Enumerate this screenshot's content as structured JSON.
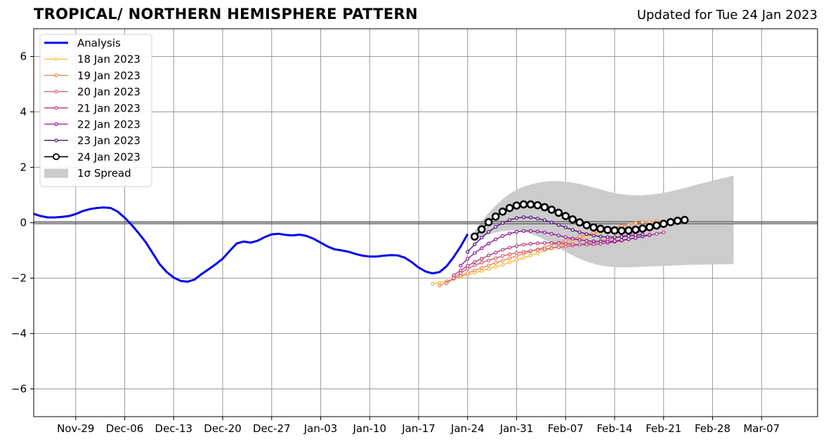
{
  "title": "TROPICAL/ NORTHERN HEMISPHERE PATTERN",
  "subtitle": "Updated for Tue 24 Jan 2023",
  "chart_data": {
    "type": "line",
    "title": "TROPICAL/ NORTHERN HEMISPHERE PATTERN",
    "subtitle": "Updated for Tue 24 Jan 2023",
    "xlabel": "",
    "ylabel": "",
    "x_axis": {
      "type": "date",
      "start": "2022-11-23",
      "end": "2023-03-15"
    },
    "ylim": [
      -7,
      7
    ],
    "x_ticks": [
      {
        "date": "2022-11-29",
        "label": "Nov-29"
      },
      {
        "date": "2022-12-06",
        "label": "Dec-06"
      },
      {
        "date": "2022-12-13",
        "label": "Dec-13"
      },
      {
        "date": "2022-12-20",
        "label": "Dec-20"
      },
      {
        "date": "2022-12-27",
        "label": "Dec-27"
      },
      {
        "date": "2023-01-03",
        "label": "Jan-03"
      },
      {
        "date": "2023-01-10",
        "label": "Jan-10"
      },
      {
        "date": "2023-01-17",
        "label": "Jan-17"
      },
      {
        "date": "2023-01-24",
        "label": "Jan-24"
      },
      {
        "date": "2023-01-31",
        "label": "Jan-31"
      },
      {
        "date": "2023-02-07",
        "label": "Feb-07"
      },
      {
        "date": "2023-02-14",
        "label": "Feb-14"
      },
      {
        "date": "2023-02-21",
        "label": "Feb-21"
      },
      {
        "date": "2023-02-28",
        "label": "Feb-28"
      },
      {
        "date": "2023-03-07",
        "label": "Mar-07"
      }
    ],
    "y_ticks": [
      {
        "value": -6,
        "label": "−6"
      },
      {
        "value": -4,
        "label": "−4"
      },
      {
        "value": -2,
        "label": "−2"
      },
      {
        "value": 0,
        "label": "0"
      },
      {
        "value": 2,
        "label": "2"
      },
      {
        "value": 4,
        "label": "4"
      },
      {
        "value": 6,
        "label": "6"
      }
    ],
    "grid": true,
    "legend_position": "top-left",
    "zero_line": true,
    "analysis": {
      "name": "Analysis",
      "color": "#0000ee",
      "points": [
        [
          "2022-11-23",
          0.32
        ],
        [
          "2022-11-24",
          0.24
        ],
        [
          "2022-11-25",
          0.19
        ],
        [
          "2022-11-26",
          0.19
        ],
        [
          "2022-11-27",
          0.21
        ],
        [
          "2022-11-28",
          0.24
        ],
        [
          "2022-11-29",
          0.31
        ],
        [
          "2022-11-30",
          0.42
        ],
        [
          "2022-12-01",
          0.49
        ],
        [
          "2022-12-02",
          0.53
        ],
        [
          "2022-12-03",
          0.55
        ],
        [
          "2022-12-04",
          0.53
        ],
        [
          "2022-12-05",
          0.4
        ],
        [
          "2022-12-06",
          0.18
        ],
        [
          "2022-12-07",
          -0.08
        ],
        [
          "2022-12-08",
          -0.38
        ],
        [
          "2022-12-09",
          -0.7
        ],
        [
          "2022-12-10",
          -1.1
        ],
        [
          "2022-12-11",
          -1.5
        ],
        [
          "2022-12-12",
          -1.78
        ],
        [
          "2022-12-13",
          -1.98
        ],
        [
          "2022-12-14",
          -2.1
        ],
        [
          "2022-12-15",
          -2.13
        ],
        [
          "2022-12-16",
          -2.05
        ],
        [
          "2022-12-17",
          -1.85
        ],
        [
          "2022-12-18",
          -1.68
        ],
        [
          "2022-12-19",
          -1.5
        ],
        [
          "2022-12-20",
          -1.3
        ],
        [
          "2022-12-21",
          -1.02
        ],
        [
          "2022-12-22",
          -0.75
        ],
        [
          "2022-12-23",
          -0.68
        ],
        [
          "2022-12-24",
          -0.72
        ],
        [
          "2022-12-25",
          -0.65
        ],
        [
          "2022-12-26",
          -0.52
        ],
        [
          "2022-12-27",
          -0.42
        ],
        [
          "2022-12-28",
          -0.4
        ],
        [
          "2022-12-29",
          -0.44
        ],
        [
          "2022-12-30",
          -0.46
        ],
        [
          "2022-12-31",
          -0.43
        ],
        [
          "2023-01-01",
          -0.48
        ],
        [
          "2023-01-02",
          -0.58
        ],
        [
          "2023-01-03",
          -0.72
        ],
        [
          "2023-01-04",
          -0.86
        ],
        [
          "2023-01-05",
          -0.96
        ],
        [
          "2023-01-06",
          -1.0
        ],
        [
          "2023-01-07",
          -1.05
        ],
        [
          "2023-01-08",
          -1.13
        ],
        [
          "2023-01-09",
          -1.19
        ],
        [
          "2023-01-10",
          -1.22
        ],
        [
          "2023-01-11",
          -1.22
        ],
        [
          "2023-01-12",
          -1.19
        ],
        [
          "2023-01-13",
          -1.17
        ],
        [
          "2023-01-14",
          -1.18
        ],
        [
          "2023-01-15",
          -1.26
        ],
        [
          "2023-01-16",
          -1.42
        ],
        [
          "2023-01-17",
          -1.62
        ],
        [
          "2023-01-18",
          -1.76
        ],
        [
          "2023-01-19",
          -1.83
        ],
        [
          "2023-01-20",
          -1.78
        ],
        [
          "2023-01-21",
          -1.57
        ],
        [
          "2023-01-22",
          -1.24
        ],
        [
          "2023-01-23",
          -0.86
        ],
        [
          "2023-01-24",
          -0.41
        ]
      ]
    },
    "forecasts": [
      {
        "name": "18 Jan 2023",
        "color": "#f8b93a",
        "start": "2023-01-19",
        "values": [
          -2.2,
          -2.17,
          -2.1,
          -2.03,
          -1.95,
          -1.88,
          -1.81,
          -1.74,
          -1.67,
          -1.59,
          -1.52,
          -1.43,
          -1.35,
          -1.27,
          -1.18,
          -1.1,
          -1.01,
          -0.92,
          -0.83,
          -0.75,
          -0.66,
          -0.58,
          -0.5,
          -0.42,
          -0.34,
          -0.26,
          -0.19,
          -0.12,
          -0.06,
          -0.01,
          0.02,
          0.04,
          0.05,
          0.04
        ]
      },
      {
        "name": "19 Jan 2023",
        "color": "#f0844e",
        "start": "2023-01-20",
        "values": [
          -2.27,
          -2.15,
          -2.03,
          -1.92,
          -1.82,
          -1.72,
          -1.63,
          -1.54,
          -1.45,
          -1.37,
          -1.28,
          -1.2,
          -1.12,
          -1.04,
          -0.96,
          -0.88,
          -0.8,
          -0.72,
          -0.65,
          -0.57,
          -0.5,
          -0.43,
          -0.37,
          -0.3,
          -0.24,
          -0.18,
          -0.12,
          -0.07,
          -0.02,
          0.02,
          0.04,
          0.05,
          0.03
        ]
      },
      {
        "name": "20 Jan 2023",
        "color": "#d95a6a",
        "start": "2023-01-21",
        "values": [
          -2.18,
          -2.0,
          -1.82,
          -1.66,
          -1.54,
          -1.44,
          -1.36,
          -1.28,
          -1.2,
          -1.14,
          -1.09,
          -1.05,
          -1.01,
          -0.98,
          -0.95,
          -0.92,
          -0.89,
          -0.86,
          -0.83,
          -0.79,
          -0.75,
          -0.71,
          -0.66,
          -0.61,
          -0.55,
          -0.49,
          -0.43,
          -0.37,
          -0.31,
          -0.25,
          -0.19,
          -0.13
        ]
      },
      {
        "name": "21 Jan 2023",
        "color": "#b4357e",
        "start": "2023-01-22",
        "values": [
          -1.9,
          -1.72,
          -1.56,
          -1.42,
          -1.3,
          -1.18,
          -1.08,
          -0.98,
          -0.9,
          -0.84,
          -0.79,
          -0.76,
          -0.74,
          -0.73,
          -0.73,
          -0.74,
          -0.76,
          -0.78,
          -0.79,
          -0.79,
          -0.78,
          -0.76,
          -0.73,
          -0.69,
          -0.65,
          -0.6,
          -0.55,
          -0.5,
          -0.45,
          -0.4,
          -0.35
        ]
      },
      {
        "name": "22 Jan 2023",
        "color": "#8e1495",
        "start": "2023-01-23",
        "values": [
          -1.55,
          -1.3,
          -1.1,
          -0.92,
          -0.75,
          -0.6,
          -0.48,
          -0.39,
          -0.33,
          -0.3,
          -0.3,
          -0.32,
          -0.35,
          -0.4,
          -0.46,
          -0.52,
          -0.58,
          -0.62,
          -0.65,
          -0.67,
          -0.68,
          -0.68,
          -0.66,
          -0.63,
          -0.59,
          -0.54,
          -0.49,
          -0.43
        ]
      },
      {
        "name": "23 Jan 2023",
        "color": "#4e0e80",
        "start": "2023-01-24",
        "values": [
          -1.05,
          -0.78,
          -0.54,
          -0.33,
          -0.15,
          -0.01,
          0.1,
          0.17,
          0.2,
          0.19,
          0.15,
          0.09,
          0.01,
          -0.08,
          -0.17,
          -0.26,
          -0.34,
          -0.41,
          -0.46,
          -0.5,
          -0.52,
          -0.52,
          -0.51,
          -0.48,
          -0.45,
          -0.42
        ]
      },
      {
        "name": "24 Jan 2023",
        "color": "#000000",
        "start": "2023-01-25",
        "values": [
          -0.5,
          -0.24,
          0.02,
          0.22,
          0.4,
          0.53,
          0.62,
          0.66,
          0.66,
          0.63,
          0.56,
          0.47,
          0.36,
          0.24,
          0.12,
          0.01,
          -0.09,
          -0.17,
          -0.22,
          -0.26,
          -0.28,
          -0.29,
          -0.28,
          -0.25,
          -0.21,
          -0.16,
          -0.1,
          -0.04,
          0.02,
          0.07,
          0.1
        ]
      }
    ],
    "spread": {
      "name": "1σ Spread",
      "color": "#cccccc",
      "start": "2023-01-25",
      "upper": [
        -0.3,
        0.04,
        0.35,
        0.62,
        0.85,
        1.04,
        1.19,
        1.3,
        1.38,
        1.44,
        1.48,
        1.5,
        1.5,
        1.48,
        1.45,
        1.4,
        1.34,
        1.27,
        1.2,
        1.13,
        1.07,
        1.03,
        1.0,
        0.99,
        0.99,
        1.01,
        1.04,
        1.08,
        1.13,
        1.19,
        1.25,
        1.32,
        1.39,
        1.45,
        1.52,
        1.58,
        1.64,
        1.7
      ],
      "lower": [
        -0.62,
        -0.51,
        -0.42,
        -0.35,
        -0.3,
        -0.28,
        -0.29,
        -0.33,
        -0.4,
        -0.5,
        -0.62,
        -0.76,
        -0.91,
        -1.05,
        -1.18,
        -1.3,
        -1.4,
        -1.48,
        -1.54,
        -1.58,
        -1.6,
        -1.61,
        -1.61,
        -1.6,
        -1.59,
        -1.58,
        -1.57,
        -1.56,
        -1.55,
        -1.54,
        -1.53,
        -1.52,
        -1.52,
        -1.51,
        -1.51,
        -1.5,
        -1.5,
        -1.49
      ]
    },
    "legend": {
      "entries": [
        {
          "label": "Analysis",
          "kind": "analysis"
        },
        {
          "label": "18 Jan 2023",
          "kind": "forecast",
          "index": 0
        },
        {
          "label": "19 Jan 2023",
          "kind": "forecast",
          "index": 1
        },
        {
          "label": "20 Jan 2023",
          "kind": "forecast",
          "index": 2
        },
        {
          "label": "21 Jan 2023",
          "kind": "forecast",
          "index": 3
        },
        {
          "label": "22 Jan 2023",
          "kind": "forecast",
          "index": 4
        },
        {
          "label": "23 Jan 2023",
          "kind": "forecast",
          "index": 5
        },
        {
          "label": "24 Jan 2023",
          "kind": "latest",
          "index": 6
        },
        {
          "label": "1σ Spread",
          "kind": "spread"
        }
      ]
    }
  }
}
